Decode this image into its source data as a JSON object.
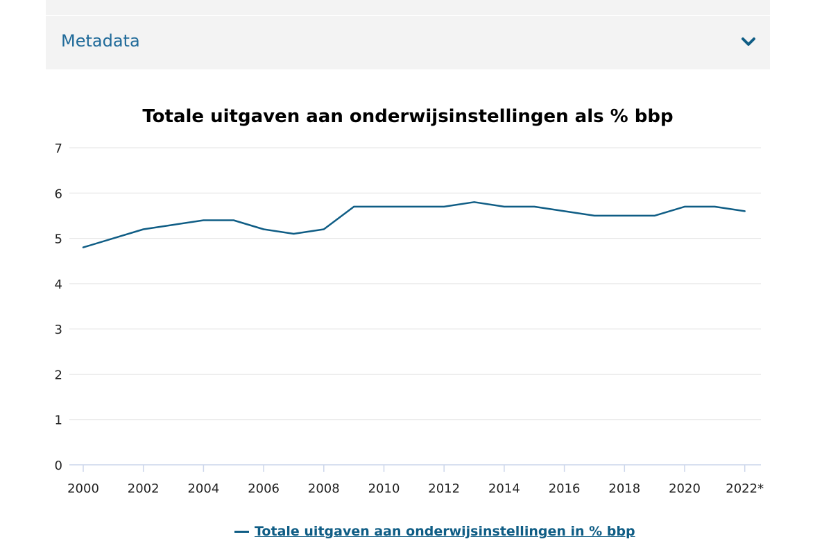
{
  "metadata": {
    "label": "Metadata"
  },
  "chart_data": {
    "type": "line",
    "title": "Totale uitgaven aan onderwijsinstellingen als % bbp",
    "xlabel": "",
    "ylabel": "",
    "ylim": [
      0,
      7
    ],
    "yticks": [
      "0",
      "1",
      "2",
      "3",
      "4",
      "5",
      "6",
      "7"
    ],
    "x": [
      "2000",
      "2001",
      "2002",
      "2003",
      "2004",
      "2005",
      "2006",
      "2007",
      "2008",
      "2009",
      "2010",
      "2011",
      "2012",
      "2013",
      "2014",
      "2015",
      "2016",
      "2017",
      "2018",
      "2019",
      "2020",
      "2021",
      "2022*"
    ],
    "xtick_labels": [
      "2000",
      "2002",
      "2004",
      "2006",
      "2008",
      "2010",
      "2012",
      "2014",
      "2016",
      "2018",
      "2020",
      "2022*"
    ],
    "grid": true,
    "legend": "bottom",
    "series": [
      {
        "name": "Totale uitgaven aan onderwijsinstellingen in % bbp",
        "color": "#0f5d85",
        "values": [
          4.8,
          5.0,
          5.2,
          5.3,
          5.4,
          5.4,
          5.2,
          5.1,
          5.2,
          5.7,
          5.7,
          5.7,
          5.7,
          5.8,
          5.7,
          5.7,
          5.6,
          5.5,
          5.5,
          5.5,
          5.7,
          5.7,
          5.6
        ]
      }
    ]
  }
}
